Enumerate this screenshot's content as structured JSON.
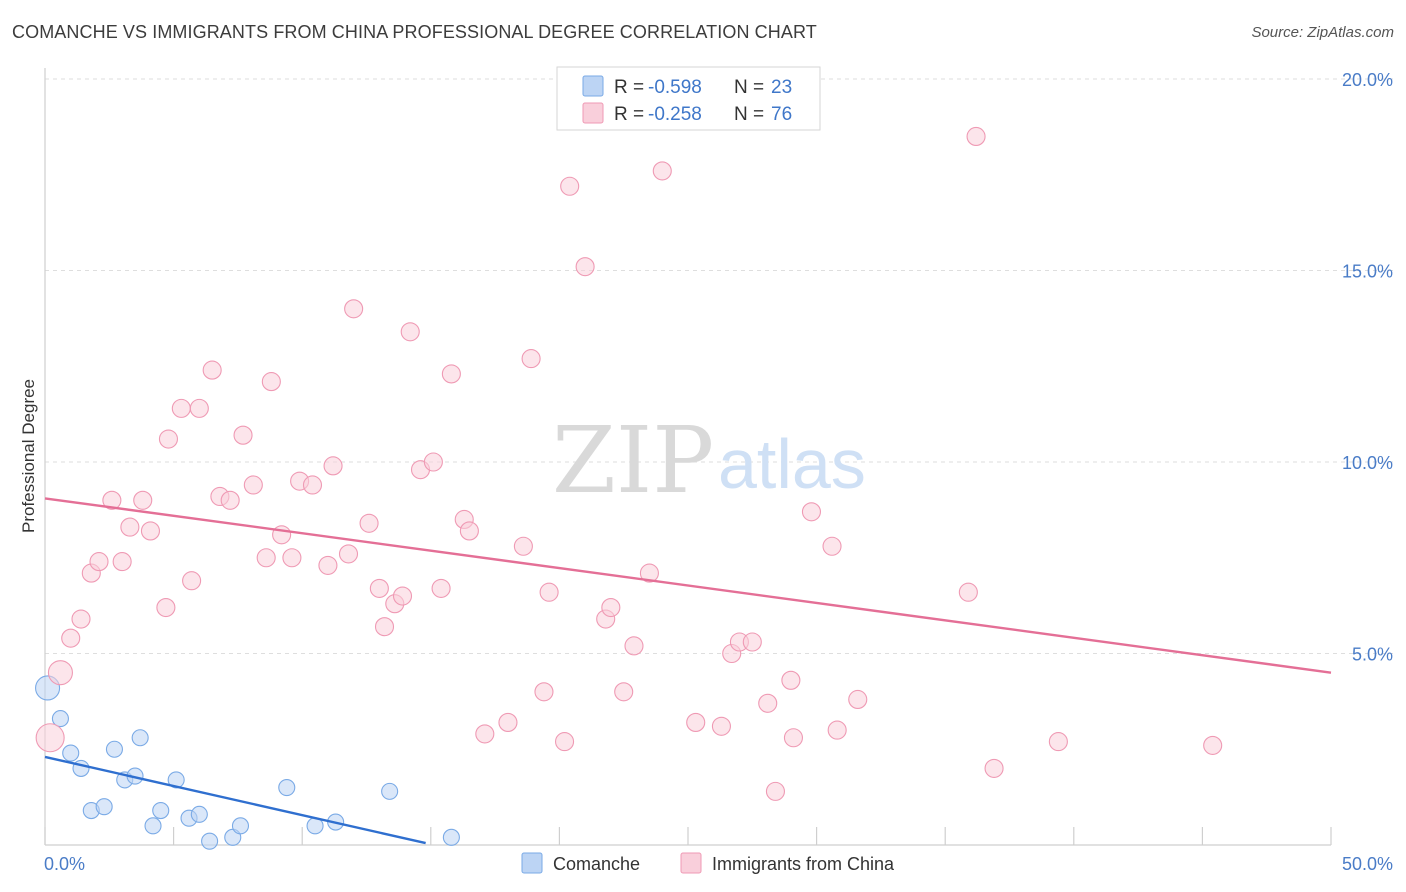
{
  "title": "COMANCHE VS IMMIGRANTS FROM CHINA PROFESSIONAL DEGREE CORRELATION CHART",
  "source": "Source: ZipAtlas.com",
  "watermark": {
    "part1": "ZIP",
    "part2": "atlas"
  },
  "legend_box": {
    "rows": [
      {
        "r_label": "R =",
        "r_value": "-0.598",
        "n_label": "N =",
        "n_value": "23"
      },
      {
        "r_label": "R =",
        "r_value": "-0.258",
        "n_label": "N =",
        "n_value": "76"
      }
    ]
  },
  "bottom_legend": [
    "Comanche",
    "Immigrants from China"
  ],
  "chart_data": {
    "type": "scatter",
    "xlabel": "",
    "ylabel": "Professional Degree",
    "xlim": [
      0,
      50
    ],
    "ylim": [
      0,
      20
    ],
    "x_tick_labels": [
      {
        "value": 0,
        "label": "0.0%"
      },
      {
        "value": 50,
        "label": "50.0%"
      }
    ],
    "y_tick_labels": [
      {
        "value": 5,
        "label": "5.0%"
      },
      {
        "value": 10,
        "label": "10.0%"
      },
      {
        "value": 15,
        "label": "15.0%"
      },
      {
        "value": 20,
        "label": "20.0%"
      }
    ],
    "grid": true,
    "series": [
      {
        "name": "Comanche",
        "color": "#7aaae6",
        "fill": "#bcd4f4",
        "R": -0.598,
        "N": 23,
        "trend": {
          "x0": 0,
          "y0": 2.3,
          "x1": 14.8,
          "y1": 0.05
        },
        "points": [
          [
            0.1,
            4.1,
            12
          ],
          [
            0.6,
            3.3,
            8
          ],
          [
            1.0,
            2.4,
            8
          ],
          [
            1.4,
            2.0,
            8
          ],
          [
            2.7,
            2.5,
            8
          ],
          [
            3.7,
            2.8,
            8
          ],
          [
            3.1,
            1.7,
            8
          ],
          [
            3.5,
            1.8,
            8
          ],
          [
            5.1,
            1.7,
            8
          ],
          [
            1.8,
            0.9,
            8
          ],
          [
            2.3,
            1.0,
            8
          ],
          [
            4.5,
            0.9,
            8
          ],
          [
            5.6,
            0.7,
            8
          ],
          [
            6.0,
            0.8,
            8
          ],
          [
            4.2,
            0.5,
            8
          ],
          [
            6.4,
            0.1,
            8
          ],
          [
            7.3,
            0.2,
            8
          ],
          [
            7.6,
            0.5,
            8
          ],
          [
            9.4,
            1.5,
            8
          ],
          [
            10.5,
            0.5,
            8
          ],
          [
            11.3,
            0.6,
            8
          ],
          [
            13.4,
            1.4,
            8
          ],
          [
            15.8,
            0.2,
            8
          ]
        ]
      },
      {
        "name": "Immigrants from China",
        "color": "#ef9ab4",
        "fill": "#f9cfdb",
        "R": -0.258,
        "N": 76,
        "trend": {
          "x0": 0,
          "y0": 9.05,
          "x1": 50,
          "y1": 4.5
        },
        "points": [
          [
            0.2,
            2.8,
            14
          ],
          [
            0.6,
            4.5,
            12
          ],
          [
            1.0,
            5.4,
            9
          ],
          [
            1.4,
            5.9,
            9
          ],
          [
            1.8,
            7.1,
            9
          ],
          [
            2.1,
            7.4,
            9
          ],
          [
            3.0,
            7.4,
            9
          ],
          [
            2.6,
            9.0,
            9
          ],
          [
            3.3,
            8.3,
            9
          ],
          [
            3.8,
            9.0,
            9
          ],
          [
            4.1,
            8.2,
            9
          ],
          [
            4.7,
            6.2,
            9
          ],
          [
            5.7,
            6.9,
            9
          ],
          [
            4.8,
            10.6,
            9
          ],
          [
            5.3,
            11.4,
            9
          ],
          [
            6.0,
            11.4,
            9
          ],
          [
            6.5,
            12.4,
            9
          ],
          [
            6.8,
            9.1,
            9
          ],
          [
            7.2,
            9.0,
            9
          ],
          [
            7.7,
            10.7,
            9
          ],
          [
            8.1,
            9.4,
            9
          ],
          [
            8.6,
            7.5,
            9
          ],
          [
            8.8,
            12.1,
            9
          ],
          [
            9.2,
            8.1,
            9
          ],
          [
            9.6,
            7.5,
            9
          ],
          [
            9.9,
            9.5,
            9
          ],
          [
            10.4,
            9.4,
            9
          ],
          [
            11.0,
            7.3,
            9
          ],
          [
            11.2,
            9.9,
            9
          ],
          [
            11.8,
            7.6,
            9
          ],
          [
            12.0,
            14.0,
            9
          ],
          [
            12.6,
            8.4,
            9
          ],
          [
            13.0,
            6.7,
            9
          ],
          [
            13.2,
            5.7,
            9
          ],
          [
            13.6,
            6.3,
            9
          ],
          [
            13.9,
            6.5,
            9
          ],
          [
            14.2,
            13.4,
            9
          ],
          [
            14.6,
            9.8,
            9
          ],
          [
            15.1,
            10.0,
            9
          ],
          [
            15.4,
            6.7,
            9
          ],
          [
            15.8,
            12.3,
            9
          ],
          [
            16.3,
            8.5,
            9
          ],
          [
            16.5,
            8.2,
            9
          ],
          [
            17.1,
            2.9,
            9
          ],
          [
            18.0,
            3.2,
            9
          ],
          [
            18.6,
            7.8,
            9
          ],
          [
            18.9,
            12.7,
            9
          ],
          [
            19.4,
            4.0,
            9
          ],
          [
            19.6,
            6.6,
            9
          ],
          [
            20.2,
            2.7,
            9
          ],
          [
            20.4,
            17.2,
            9
          ],
          [
            21.0,
            15.1,
            9
          ],
          [
            21.8,
            5.9,
            9
          ],
          [
            22.0,
            6.2,
            9
          ],
          [
            22.5,
            4.0,
            9
          ],
          [
            22.9,
            5.2,
            9
          ],
          [
            23.5,
            7.1,
            9
          ],
          [
            24.0,
            17.6,
            9
          ],
          [
            25.3,
            3.2,
            9
          ],
          [
            26.3,
            3.1,
            9
          ],
          [
            26.7,
            5.0,
            9
          ],
          [
            27.0,
            5.3,
            9
          ],
          [
            27.5,
            5.3,
            9
          ],
          [
            28.1,
            3.7,
            9
          ],
          [
            28.4,
            1.4,
            9
          ],
          [
            29.0,
            4.3,
            9
          ],
          [
            29.1,
            2.8,
            9
          ],
          [
            29.8,
            8.7,
            9
          ],
          [
            30.6,
            7.8,
            9
          ],
          [
            30.8,
            3.0,
            9
          ],
          [
            31.6,
            3.8,
            9
          ],
          [
            36.2,
            18.5,
            9
          ],
          [
            35.9,
            6.6,
            9
          ],
          [
            36.9,
            2.0,
            9
          ],
          [
            39.4,
            2.7,
            9
          ],
          [
            45.4,
            2.6,
            9
          ]
        ]
      }
    ]
  }
}
